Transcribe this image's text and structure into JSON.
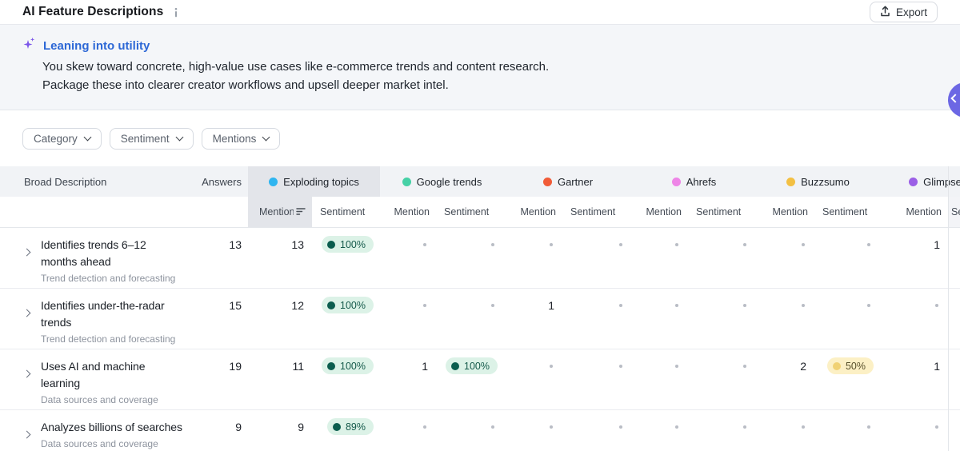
{
  "header": {
    "title": "AI Feature Descriptions",
    "export_label": "Export"
  },
  "banner": {
    "heading": "Leaning into utility",
    "line1": "You skew toward concrete, high-value use cases like e-commerce trends and content research.",
    "line2": "Package these into clearer creator workflows and upsell deeper market intel."
  },
  "filters": [
    {
      "label": "Category"
    },
    {
      "label": "Sentiment"
    },
    {
      "label": "Mentions"
    }
  ],
  "table": {
    "columns": {
      "description": "Broad Description",
      "answers": "Answers",
      "mention": "Mention",
      "sentiment": "Sentiment"
    },
    "tools": [
      {
        "name": "Exploding topics",
        "color": "#2fb5f0",
        "highlighted": true,
        "sorted_by_mention": true
      },
      {
        "name": "Google trends",
        "color": "#46d1a6"
      },
      {
        "name": "Gartner",
        "color": "#f15c38"
      },
      {
        "name": "Ahrefs",
        "color": "#ee85e7"
      },
      {
        "name": "Buzzsumo",
        "color": "#f3c043"
      },
      {
        "name": "Glimpse",
        "color": "#9b5fe6"
      }
    ],
    "rows": [
      {
        "title": "Identifies trends 6–12 months ahead",
        "category": "Trend detection and forecasting",
        "answers": "13",
        "cells": [
          {
            "mention": "13",
            "sentiment": "100%",
            "tone": "positive"
          },
          {},
          {},
          {},
          {},
          {
            "mention": "1"
          }
        ]
      },
      {
        "title": "Identifies under-the-radar trends",
        "category": "Trend detection and forecasting",
        "answers": "15",
        "cells": [
          {
            "mention": "12",
            "sentiment": "100%",
            "tone": "positive"
          },
          {},
          {
            "mention": "1"
          },
          {},
          {},
          {}
        ]
      },
      {
        "title": "Uses AI and machine learning",
        "category": "Data sources and coverage",
        "answers": "19",
        "cells": [
          {
            "mention": "11",
            "sentiment": "100%",
            "tone": "positive"
          },
          {
            "mention": "1",
            "sentiment": "100%",
            "tone": "positive"
          },
          {},
          {},
          {
            "mention": "2",
            "sentiment": "50%",
            "tone": "mixed"
          },
          {
            "mention": "1"
          }
        ]
      },
      {
        "title": "Analyzes billions of searches",
        "category": "Data sources and coverage",
        "answers": "9",
        "cells": [
          {
            "mention": "9",
            "sentiment": "89%",
            "tone": "positive"
          },
          {},
          {},
          {},
          {},
          {}
        ]
      }
    ]
  },
  "colors": {
    "accent_fab": "#6c67e4",
    "heading_blue": "#2d68d6",
    "sparkle_purple": "#7c57ea",
    "positive_bg": "#dcf2e7",
    "positive_dot": "#0b5d4e",
    "positive_text": "#14594a",
    "mixed_bg": "#fcf0c5",
    "mixed_dot": "#f0d173",
    "mixed_text": "#57502b",
    "empty_dot": "#b9bdc5",
    "header_highlight": "#e3e5ea"
  }
}
